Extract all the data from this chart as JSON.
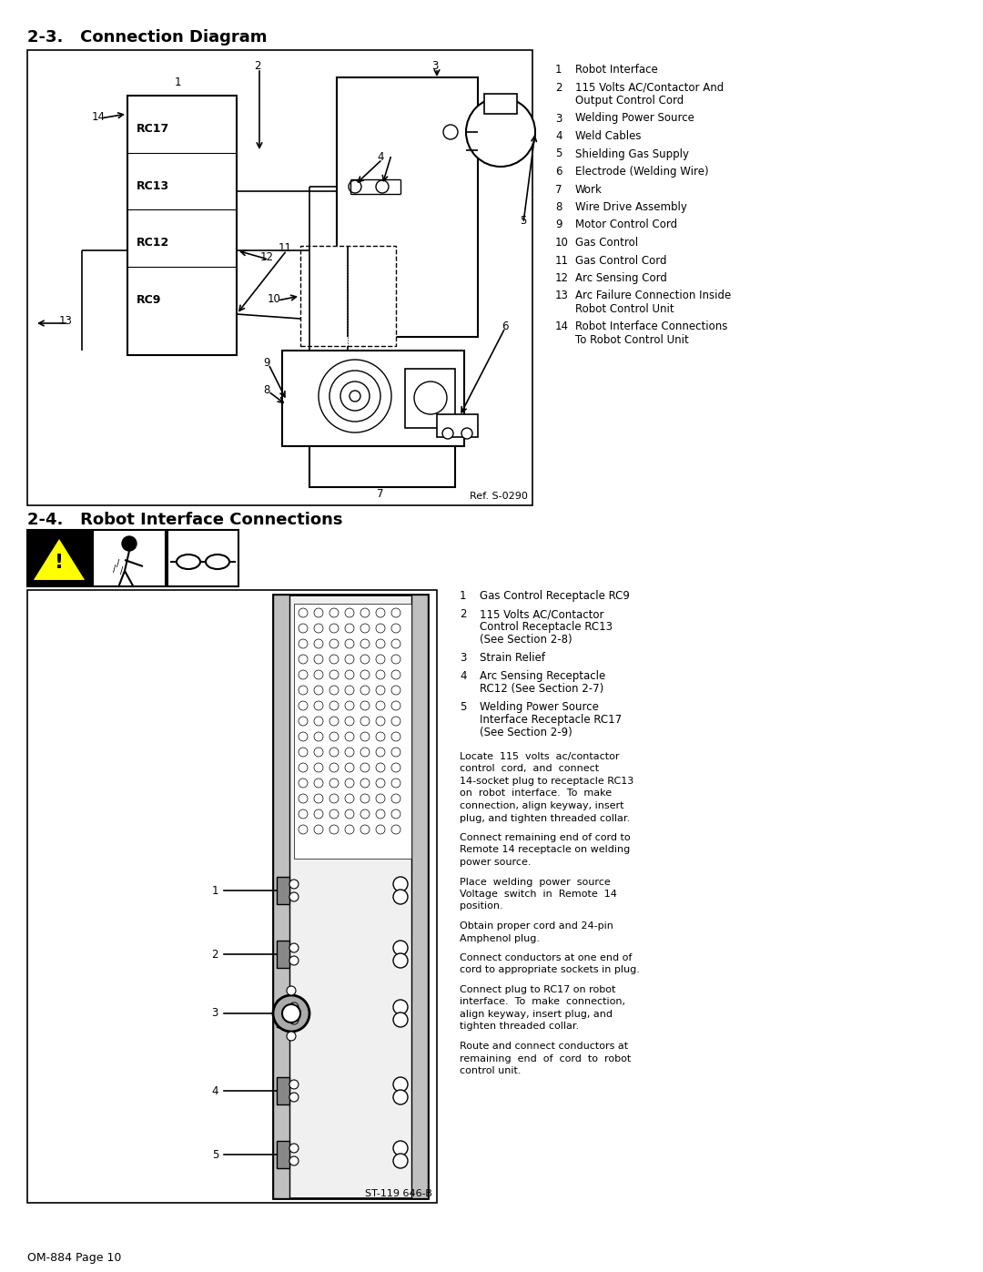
{
  "page_title_top": "2-3.   Connection Diagram",
  "page_title_bottom": "2-4.   Robot Interface Connections",
  "page_footer": "OM-884 Page 10",
  "ref_top": "Ref. S-0290",
  "ref_bottom": "ST-119 646-B",
  "legend_top": [
    [
      "1",
      "Robot Interface"
    ],
    [
      "2",
      "115 Volts AC/Contactor And\nOutput Control Cord"
    ],
    [
      "3",
      "Welding Power Source"
    ],
    [
      "4",
      "Weld Cables"
    ],
    [
      "5",
      "Shielding Gas Supply"
    ],
    [
      "6",
      "Electrode (Welding Wire)"
    ],
    [
      "7",
      "Work"
    ],
    [
      "8",
      "Wire Drive Assembly"
    ],
    [
      "9",
      "Motor Control Cord"
    ],
    [
      "10",
      "Gas Control"
    ],
    [
      "11",
      "Gas Control Cord"
    ],
    [
      "12",
      "Arc Sensing Cord"
    ],
    [
      "13",
      "Arc Failure Connection Inside\nRobot Control Unit"
    ],
    [
      "14",
      "Robot Interface Connections\nTo Robot Control Unit"
    ]
  ],
  "legend_bottom": [
    [
      "1",
      "Gas Control Receptacle RC9"
    ],
    [
      "2",
      "115 Volts AC/Contactor\nControl Receptacle RC13\n(See Section 2-8)"
    ],
    [
      "3",
      "Strain Relief"
    ],
    [
      "4",
      "Arc Sensing Receptacle\nRC12 (See Section 2-7)"
    ],
    [
      "5",
      "Welding Power Source\nInterface Receptacle RC17\n(See Section 2-9)"
    ]
  ],
  "body_paras": [
    "Locate  115  volts  ac/contactor\ncontrol  cord,  and  connect\n14-socket plug to receptacle RC13\non  robot  interface.  To  make\nconnection, align keyway, insert\nplug, and tighten threaded collar.",
    "Connect remaining end of cord to\nRemote 14 receptacle on welding\npower source.",
    "Place  welding  power  source\nVoltage  switch  in  Remote  14\nposition.",
    "Obtain proper cord and 24-pin\nAmphenol plug.",
    "Connect conductors at one end of\ncord to appropriate sockets in plug.",
    "Connect plug to RC17 on robot\ninterface.  To  make  connection,\nalign keyway, insert plug, and\ntighten threaded collar.",
    "Route and connect conductors at\nremaining  end  of  cord  to  robot\ncontrol unit."
  ],
  "bg_color": "#ffffff",
  "text_color": "#000000"
}
